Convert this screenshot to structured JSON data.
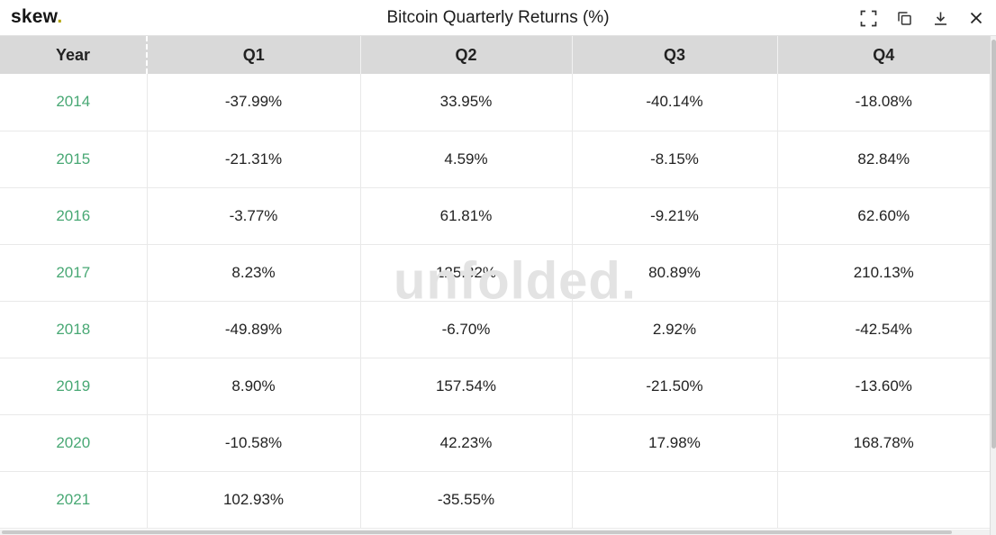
{
  "header": {
    "logo_text": "skew",
    "logo_dot": ".",
    "title": "Bitcoin Quarterly Returns (%)",
    "icons": [
      {
        "name": "fullscreen-icon"
      },
      {
        "name": "copy-icon"
      },
      {
        "name": "download-icon"
      },
      {
        "name": "close-icon"
      }
    ]
  },
  "watermark": "unfolded.",
  "colors": {
    "year_link": "#48a874",
    "logo_dot": "#b3a405",
    "header_bg": "#d9d9d9"
  },
  "chart_data": {
    "type": "table",
    "title": "Bitcoin Quarterly Returns (%)",
    "columns": [
      "Year",
      "Q1",
      "Q2",
      "Q3",
      "Q4"
    ],
    "rows": [
      {
        "year": "2014",
        "values": [
          "-37.99%",
          "33.95%",
          "-40.14%",
          "-18.08%"
        ]
      },
      {
        "year": "2015",
        "values": [
          "-21.31%",
          "4.59%",
          "-8.15%",
          "82.84%"
        ]
      },
      {
        "year": "2016",
        "values": [
          "-3.77%",
          "61.81%",
          "-9.21%",
          "62.60%"
        ]
      },
      {
        "year": "2017",
        "values": [
          "8.23%",
          "125.32%",
          "80.89%",
          "210.13%"
        ]
      },
      {
        "year": "2018",
        "values": [
          "-49.89%",
          "-6.70%",
          "2.92%",
          "-42.54%"
        ]
      },
      {
        "year": "2019",
        "values": [
          "8.90%",
          "157.54%",
          "-21.50%",
          "-13.60%"
        ]
      },
      {
        "year": "2020",
        "values": [
          "-10.58%",
          "42.23%",
          "17.98%",
          "168.78%"
        ]
      },
      {
        "year": "2021",
        "values": [
          "102.93%",
          "-35.55%",
          "",
          ""
        ]
      }
    ]
  }
}
